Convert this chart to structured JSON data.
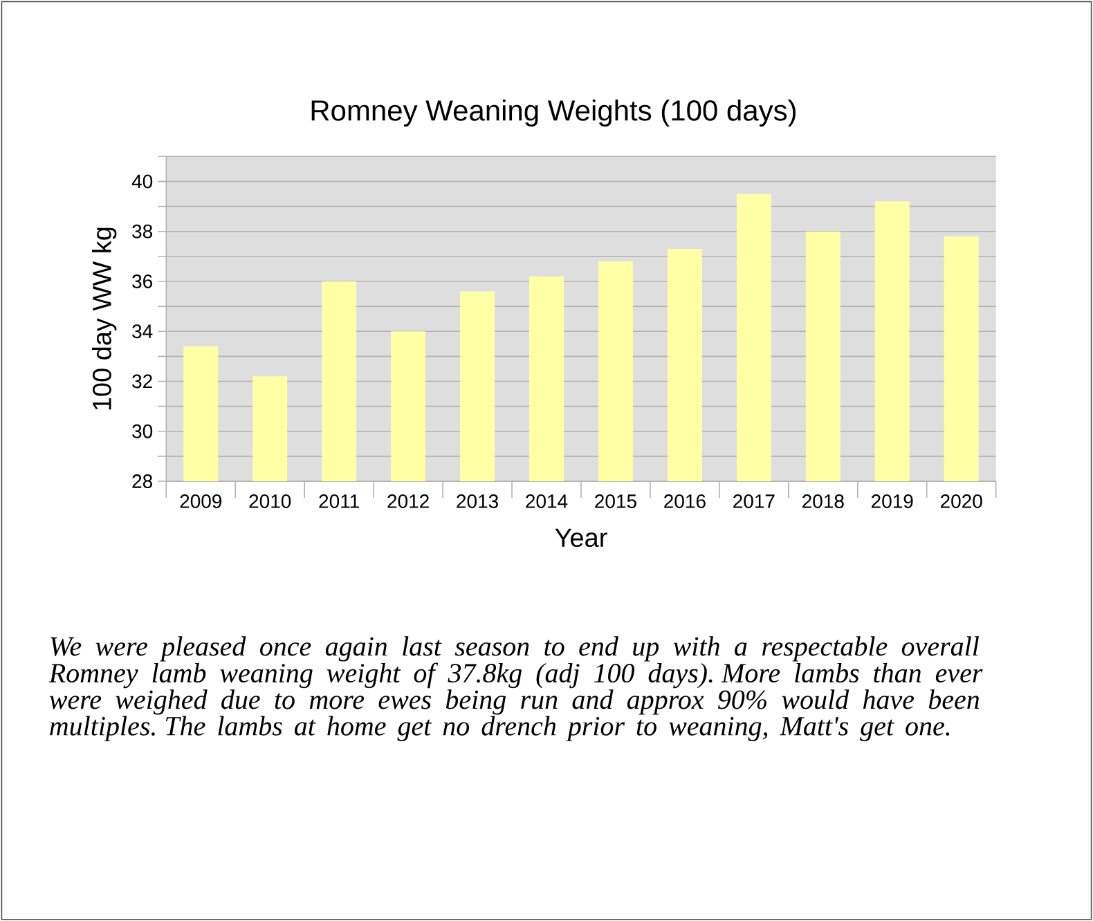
{
  "chart_data": {
    "type": "bar",
    "title": "Romney Weaning Weights (100 days)",
    "xlabel": "Year",
    "ylabel": "100 day WW kg",
    "categories": [
      "2009",
      "2010",
      "2011",
      "2012",
      "2013",
      "2014",
      "2015",
      "2016",
      "2017",
      "2018",
      "2019",
      "2020"
    ],
    "values": [
      33.4,
      32.2,
      36.0,
      34.0,
      35.6,
      36.2,
      36.8,
      37.3,
      39.5,
      38.0,
      39.2,
      37.8
    ],
    "color": "#ffffa6",
    "ylim": [
      28,
      41
    ],
    "yticks": [
      28,
      {
        "value": 29,
        "label": null
      },
      30,
      {
        "value": 31,
        "label": null
      },
      32,
      {
        "value": 33,
        "label": null
      },
      34,
      {
        "value": 35,
        "label": null
      },
      36,
      {
        "value": 37,
        "label": null
      },
      38,
      {
        "value": 39,
        "label": null
      },
      40,
      {
        "value": 41,
        "label": null
      }
    ],
    "grid": "y",
    "annotations": [
      "*We were pleased once again last season to end up with a respectable overall Romney lamb weaning weight of 37.8kg (adj 100 days). More lambs than ever were weighed due to more ewes being run and approx 90% would have been multiples. The lambs at home get no drench prior to weaning, Matt's get one.*"
    ]
  }
}
